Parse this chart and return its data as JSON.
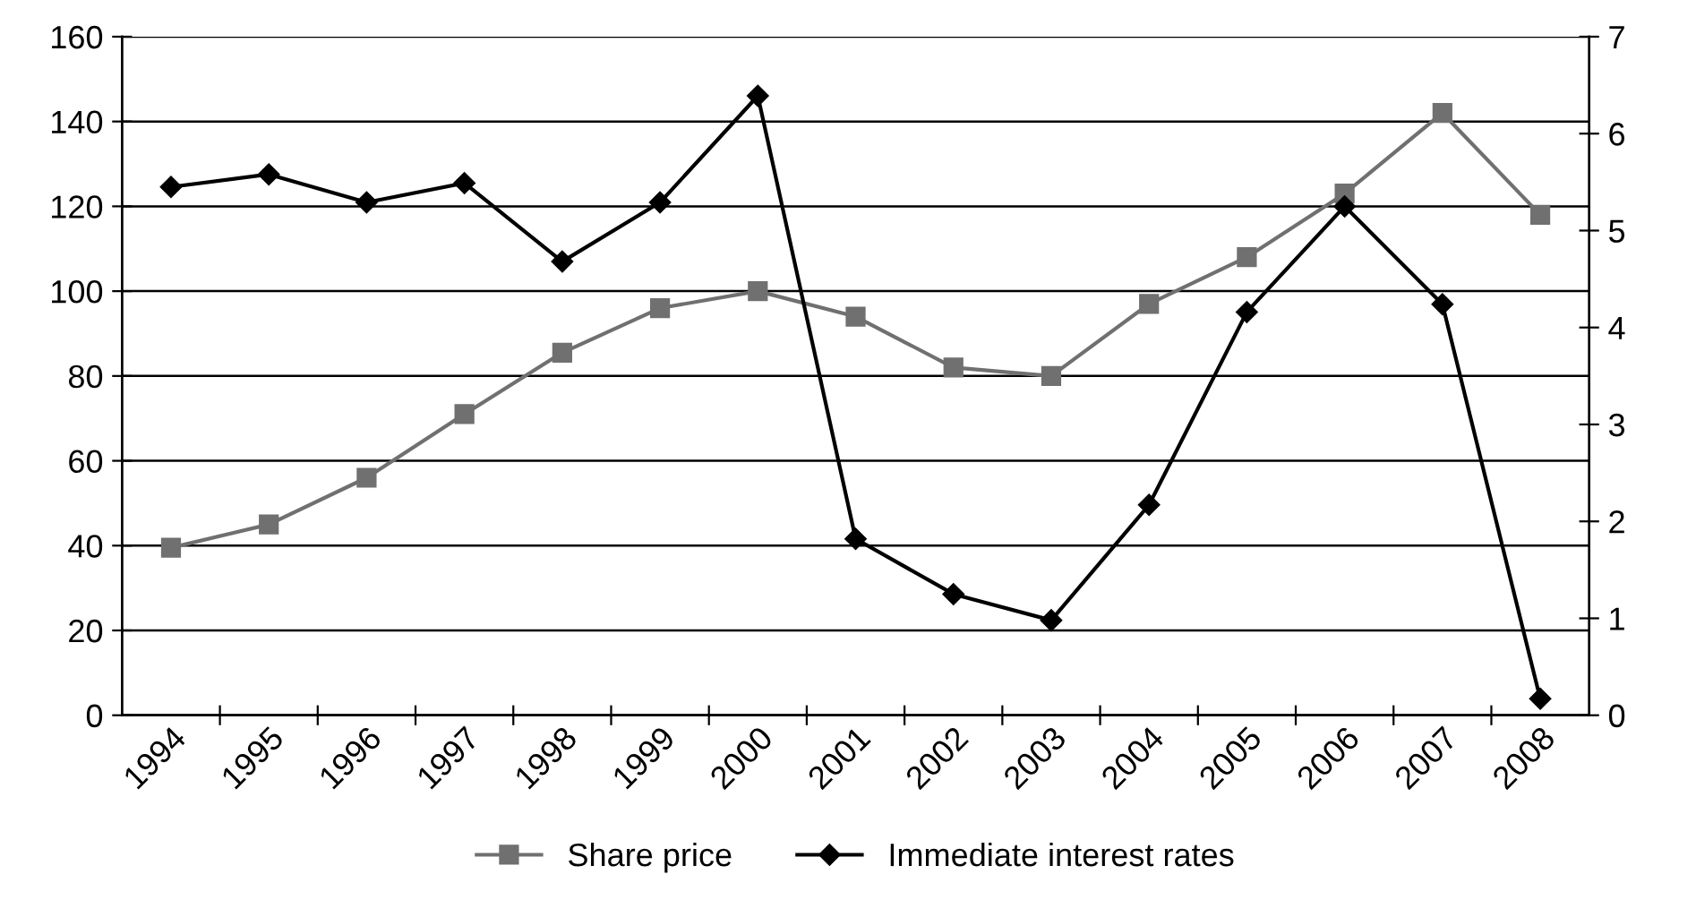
{
  "chart_data": {
    "type": "line",
    "categories": [
      "1994",
      "1995",
      "1996",
      "1997",
      "1998",
      "1999",
      "2000",
      "2001",
      "2002",
      "2003",
      "2004",
      "2005",
      "2006",
      "2007",
      "2008"
    ],
    "series": [
      {
        "name": "Share price",
        "color": "#707070",
        "marker": "square",
        "values": [
          39.5,
          45,
          56,
          71,
          85.5,
          96,
          100,
          94,
          82,
          80,
          97,
          108,
          123,
          142,
          118
        ]
      },
      {
        "name": "Immediate interest rates",
        "color": "#000000",
        "marker": "diamond",
        "axis": "y2",
        "values": [
          5.45,
          5.58,
          5.29,
          5.49,
          4.68,
          5.29,
          6.39,
          1.82,
          1.25,
          0.98,
          2.17,
          4.16,
          5.25,
          4.24,
          0.17
        ]
      }
    ],
    "ylim": [
      0,
      160
    ],
    "yticks": [
      0,
      20,
      40,
      60,
      80,
      100,
      120,
      140,
      160
    ],
    "y2lim": [
      0,
      7
    ],
    "y2ticks": [
      0,
      1,
      2,
      3,
      4,
      5,
      6,
      7
    ],
    "grid": "y",
    "legend": "bottom",
    "line_style": "solid"
  }
}
